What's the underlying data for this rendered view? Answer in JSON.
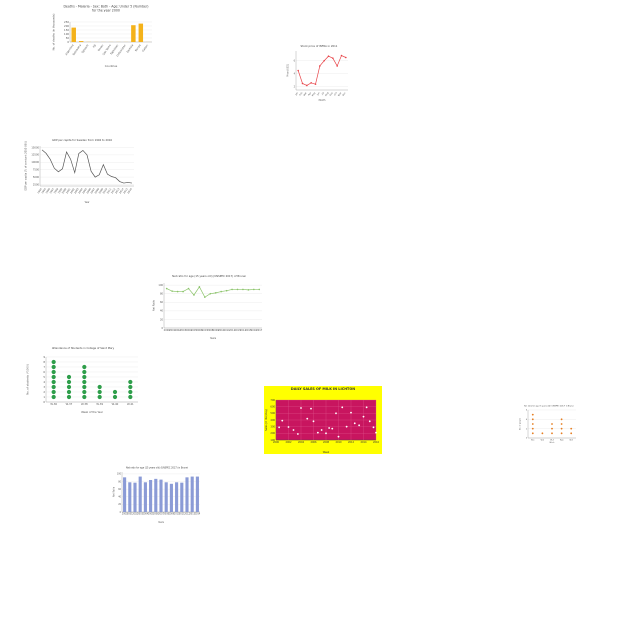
{
  "colors": {
    "orange": "#f4b21a",
    "red_line": "#e8454a",
    "gray_line": "#555555",
    "green_line": "#8cc46b",
    "green_dot": "#2e9e4a",
    "magenta": "#c8155f",
    "yellow": "#ffff00",
    "blue_bar": "#8b9bd6",
    "orange_dot": "#e67e22"
  },
  "chart_data": [
    {
      "id": "c1",
      "type": "bar",
      "title": "Deaths - Malaria - Sex: Both - Age: Under 5 (Number)",
      "subtitle": "for the year 2000",
      "xlabel": "Countries",
      "ylabel": "No. of deaths (in thousands)",
      "categories": [
        "Argentina",
        "Botswana",
        "Djibouti",
        "Fiji",
        "Oman",
        "Sao Tome",
        "Tajikistan",
        "Uzbekistan",
        "Zambia",
        "Kenya",
        "Gabon"
      ],
      "values": [
        180,
        12,
        2,
        1,
        1,
        1,
        1,
        1,
        210,
        230,
        1
      ],
      "yticks": [
        0,
        50,
        100,
        150,
        200,
        250
      ],
      "ylim": [
        0,
        250
      ],
      "grid": true
    },
    {
      "id": "c2",
      "type": "line",
      "title": "Stock price of INFRA in 2011",
      "xlabel": "Month",
      "ylabel": "Price (USD)",
      "categories": [
        "Jan",
        "Feb",
        "Mar",
        "Apr",
        "May",
        "Jun",
        "Jul",
        "Aug",
        "Sep",
        "Oct",
        "Nov",
        "Dec"
      ],
      "values": [
        4.5,
        2.5,
        2.2,
        2.6,
        2.4,
        5.2,
        6.0,
        6.7,
        6.4,
        5.2,
        6.8,
        6.5
      ],
      "yticks": [
        2,
        4,
        6
      ],
      "ylim": [
        1.5,
        7.5
      ],
      "grid": true
    },
    {
      "id": "c3",
      "type": "line",
      "title": "GDP per capita for Sweden from 1994 to 2016",
      "xlabel": "Year",
      "ylabel": "GDP per capita (% of constant 2010 US$)",
      "categories": [
        "1994",
        "1995",
        "1996",
        "1997",
        "1998",
        "1999",
        "2000",
        "2001",
        "2002",
        "2003",
        "2004",
        "2005",
        "2006",
        "2007",
        "2008",
        "2009",
        "2010",
        "2011",
        "2012",
        "2013",
        "2014",
        "2015",
        "2016"
      ],
      "values": [
        14200,
        13000,
        11000,
        8000,
        6800,
        7800,
        13500,
        11000,
        6500,
        13000,
        14000,
        12500,
        7000,
        5000,
        5800,
        9200,
        6000,
        5200,
        4800,
        3500,
        3000,
        3200,
        3000
      ],
      "yticks": [
        2500,
        5000,
        7500,
        10000,
        12500,
        15000
      ],
      "ylim": [
        2000,
        15500
      ],
      "grid": true
    },
    {
      "id": "c4",
      "type": "line",
      "title": "Net ratio for age (15 years old) (UNSPEC 2017) of Brunei",
      "xlabel": "Years",
      "ylabel": "Net Ratio",
      "categories": [
        "2000",
        "2001",
        "2002",
        "2003",
        "2004",
        "2005",
        "2006",
        "2007",
        "2008",
        "2009",
        "2010",
        "2011",
        "2012",
        "2013",
        "2014",
        "2015",
        "2016",
        "2017"
      ],
      "values": [
        92,
        86,
        85,
        85,
        92,
        77,
        96,
        72,
        80,
        82,
        85,
        87,
        90,
        90,
        90,
        89,
        90,
        90
      ],
      "yticks": [
        0,
        20,
        40,
        60,
        80,
        100
      ],
      "ylim": [
        0,
        105
      ],
      "grid": true
    },
    {
      "id": "c5",
      "type": "scatter",
      "title": "Attendance of Students in College of Saint Mary",
      "xlabel": "Week of the Year",
      "ylabel": "No. of students (*1000)",
      "categories": [
        "W-36",
        "W-37",
        "W-38",
        "W-39",
        "W-40",
        "W-41"
      ],
      "values": [
        8,
        5,
        7,
        3,
        2,
        4
      ],
      "yticks": [
        0,
        1,
        2,
        3,
        4,
        5,
        6,
        7,
        8,
        9
      ],
      "ylim": [
        0,
        9
      ],
      "grid": true
    },
    {
      "id": "c6",
      "type": "scatter",
      "title": "DAILY SALES OF MILK IN LICHTON",
      "xlabel": "Week",
      "ylabel": "Sales (in liter/day)",
      "x": [
        2000.5,
        2001,
        2002,
        2002.8,
        2003.5,
        2004,
        2005,
        2005.6,
        2006,
        2006.7,
        2007.3,
        2008,
        2008.5,
        2009,
        2009.6,
        2010,
        2010.6,
        2011.3,
        2012,
        2012.6,
        2013.3,
        2014,
        2014.5,
        2015,
        2015.6,
        2016
      ],
      "y": [
        290,
        390,
        295,
        250,
        190,
        580,
        420,
        570,
        380,
        210,
        250,
        200,
        280,
        270,
        500,
        150,
        590,
        300,
        510,
        350,
        320,
        450,
        590,
        380,
        290,
        210
      ],
      "xticks": [
        2000,
        2002,
        2004,
        2006,
        2008,
        2010,
        2012,
        2014,
        2016
      ],
      "yticks": [
        100,
        200,
        300,
        400,
        500,
        600,
        700
      ],
      "xlim": [
        2000,
        2016
      ],
      "ylim": [
        100,
        700
      ],
      "grid": true
    },
    {
      "id": "c7",
      "type": "scatter",
      "title": "Net ratio for age (5 years old) (UNSPEC 2017) in Brunei",
      "xlabel": "Week",
      "ylabel": "No. of people",
      "categories": [
        "W-1",
        "W-2",
        "W-3",
        "W-4",
        "W-5"
      ],
      "values": [
        5,
        1,
        3,
        4,
        2
      ],
      "yticks": [
        0,
        2,
        4,
        6
      ],
      "ylim": [
        0,
        6
      ],
      "grid": true
    },
    {
      "id": "c8",
      "type": "bar",
      "title": "Net ratio for age (15 years old) (UNSPEC 2017) in Brunei",
      "xlabel": "Years",
      "ylabel": "Net Ratio",
      "categories": [
        "2000",
        "2001",
        "2002",
        "2003",
        "2004",
        "2005",
        "2006",
        "2007",
        "2008",
        "2009",
        "2010",
        "2011",
        "2012",
        "2013",
        "2014"
      ],
      "values": [
        91,
        78,
        77,
        93,
        78,
        84,
        87,
        85,
        78,
        74,
        78,
        77,
        91,
        93,
        93
      ],
      "yticks": [
        0,
        20,
        40,
        60,
        80,
        100
      ],
      "ylim": [
        0,
        105
      ],
      "grid": true
    }
  ]
}
